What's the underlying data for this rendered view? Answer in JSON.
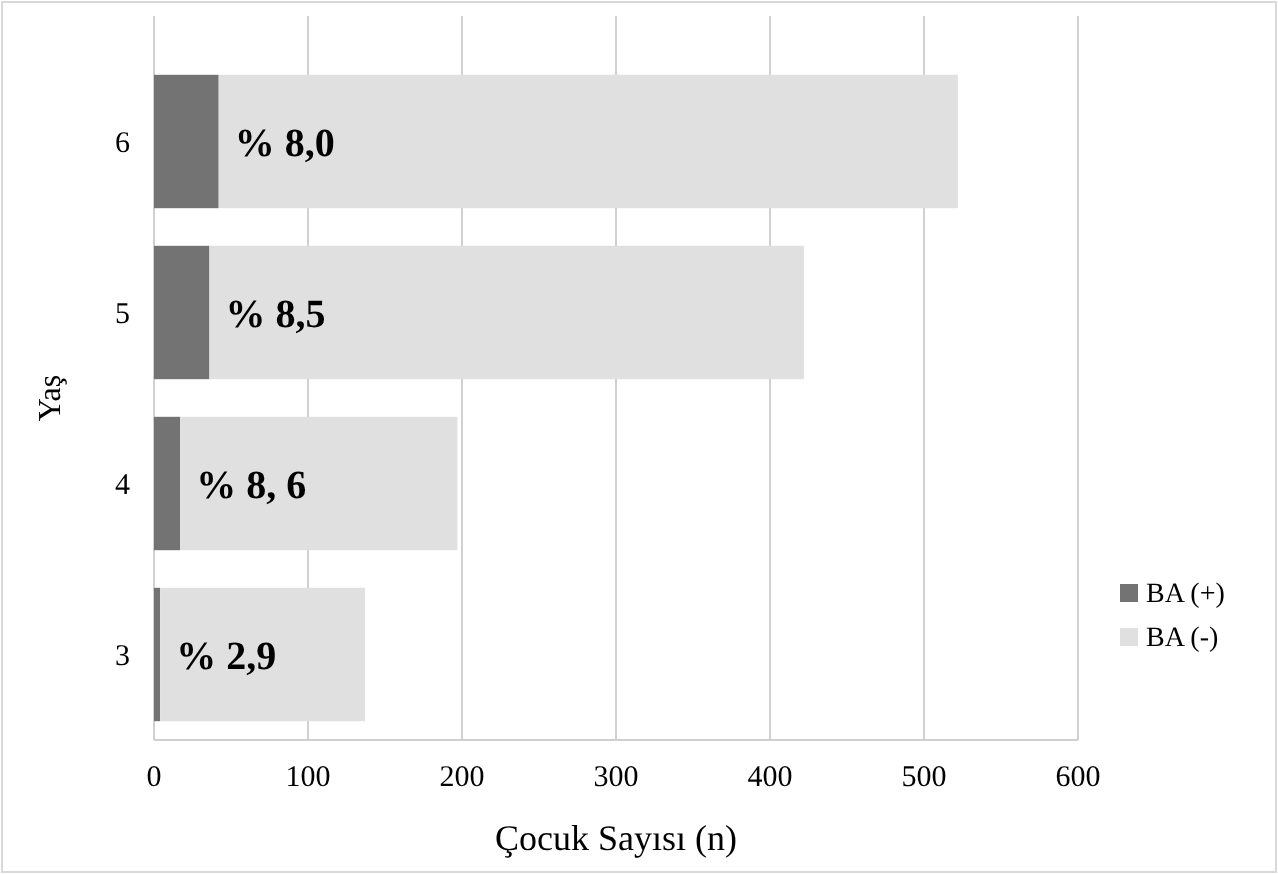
{
  "chart_data": {
    "type": "bar",
    "orientation": "horizontal",
    "stacked": true,
    "xlabel": "Çocuk Sayısı (n)",
    "ylabel": "Yaş",
    "categories": [
      "6",
      "5",
      "4",
      "3"
    ],
    "series": [
      {
        "name": "BA (+)",
        "color": "#737373",
        "values": [
          42,
          36,
          17,
          4
        ]
      },
      {
        "name": "BA (-)",
        "color": "#e0e0e0",
        "values": [
          480,
          386,
          180,
          133
        ]
      }
    ],
    "xlim": [
      0,
      600
    ],
    "xticks": [
      0,
      100,
      200,
      300,
      400,
      500,
      600
    ],
    "grid": "x",
    "legend": "right",
    "annotations": [
      {
        "text": "% 8,0",
        "x": 42,
        "y": "6"
      },
      {
        "text": "% 8,5",
        "x": 36,
        "y": "5"
      },
      {
        "text": "% 8, 6",
        "x": 17,
        "y": "4"
      },
      {
        "text": "% 2,9",
        "x": 4,
        "y": "3"
      }
    ]
  }
}
